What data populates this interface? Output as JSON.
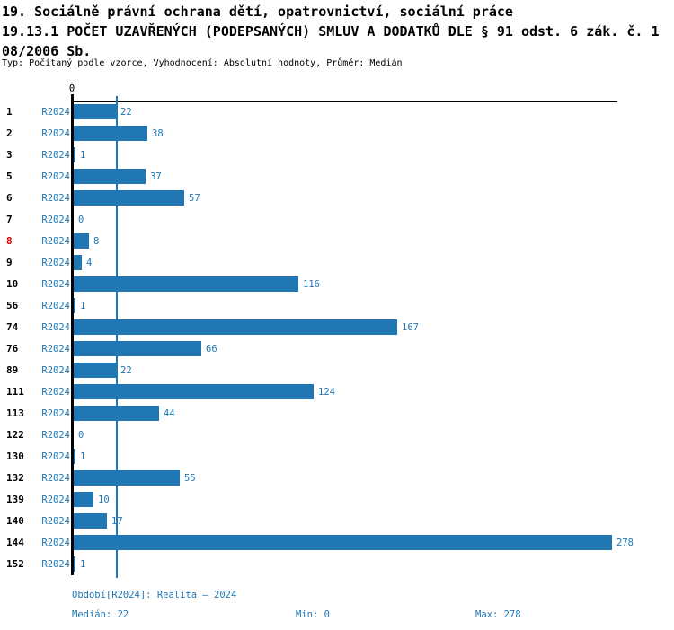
{
  "header": {
    "title_line1": "19. Sociálně právní ochrana dětí, opatrovnictví, sociální práce",
    "title_line2": "19.13.1 POČET UZAVŘENÝCH (PODEPSANÝCH) SMLUV A DODATKŮ DLE § 91 odst. 6 zák. č. 1",
    "title_line3": "08/2006 Sb.",
    "meta": "Typ: Počítaný podle vzorce, Vyhodnocení: Absolutní hodnoty, Průměr: Medián"
  },
  "chart_data": {
    "type": "bar",
    "orientation": "horizontal",
    "series_label": "R2024",
    "categories": [
      "1",
      "2",
      "3",
      "5",
      "6",
      "7",
      "8",
      "9",
      "10",
      "56",
      "74",
      "76",
      "89",
      "111",
      "113",
      "122",
      "130",
      "132",
      "139",
      "140",
      "144",
      "152"
    ],
    "values": [
      22,
      38,
      1,
      37,
      57,
      0,
      8,
      4,
      116,
      1,
      167,
      66,
      22,
      124,
      44,
      0,
      1,
      55,
      10,
      17,
      278,
      1
    ],
    "highlighted_categories": [
      "8"
    ],
    "axis_tick_label": "0",
    "xlim": [
      0,
      281
    ],
    "median_value": 22,
    "grid": false,
    "legend_position": "none"
  },
  "colors": {
    "accent_blue": "#1f77b4",
    "bar_blue": "#2077b4",
    "highlight_red": "#dd0000",
    "text_black": "#000000"
  },
  "footer": {
    "period": "Období[R2024]: Realita – 2024",
    "median": "Medián: 22",
    "min": "Min: 0",
    "max": "Max: 278"
  }
}
